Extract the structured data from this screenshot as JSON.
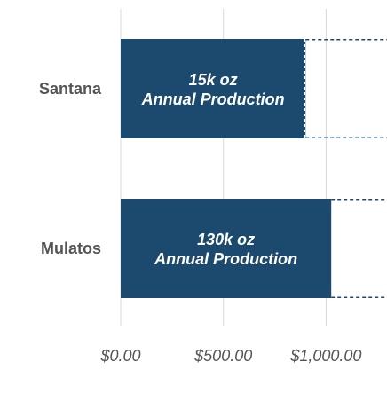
{
  "chart_data": {
    "type": "bar",
    "orientation": "horizontal",
    "categories": [
      "Santana",
      "Mulatos"
    ],
    "values": [
      900,
      1025
    ],
    "bar_labels": [
      [
        "15k oz",
        "Annual Production"
      ],
      [
        "130k oz",
        "Annual Production"
      ]
    ],
    "xlim": [
      0,
      1300
    ],
    "ticks": [
      0,
      500,
      1000
    ],
    "tick_labels": [
      "$0.00",
      "$500.00",
      "$1,000.00"
    ],
    "grid": true,
    "colors": {
      "bar": "#1c4a6e",
      "dashed_outline": "#1c4a6e",
      "grid": "#d9d9d9",
      "text": "#555555"
    }
  }
}
